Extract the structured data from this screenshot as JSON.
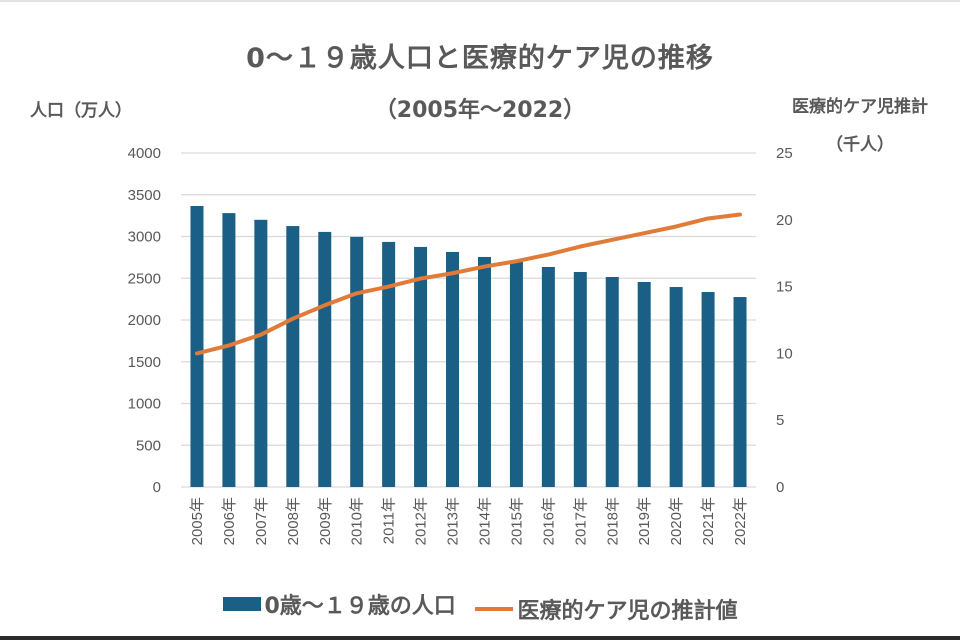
{
  "chart_data": {
    "type": "bar+line",
    "title": "0～１９歳人口と医療的ケア児の推移",
    "subtitle": "（2005年～2022）",
    "ylabel_left": "人口（万人）",
    "ylabel_right_line1": "医療的ケア児推計",
    "ylabel_right_line2": "（千人）",
    "categories": [
      "2005年",
      "2006年",
      "2007年",
      "2008年",
      "2009年",
      "2010年",
      "2011年",
      "2012年",
      "2013年",
      "2014年",
      "2015年",
      "2016年",
      "2017年",
      "2018年",
      "2019年",
      "2020年",
      "2021年",
      "2022年"
    ],
    "ylim_left": [
      0,
      4000
    ],
    "yticks_left": [
      "0",
      "500",
      "1000",
      "1500",
      "2000",
      "2500",
      "3000",
      "3500",
      "4000"
    ],
    "ylim_right": [
      0,
      25
    ],
    "yticks_right": [
      "0",
      "5",
      "10",
      "15",
      "20",
      "25"
    ],
    "grid": true,
    "legend_position": "bottom",
    "series": [
      {
        "name": "0歳～１９歳の人口",
        "type": "bar",
        "axis": "left",
        "color": "#1a5f85",
        "values": [
          3365,
          3280,
          3200,
          3125,
          3055,
          2995,
          2935,
          2875,
          2815,
          2755,
          2695,
          2635,
          2575,
          2515,
          2455,
          2395,
          2335,
          2275
        ]
      },
      {
        "name": "医療的ケア児の推計値",
        "type": "line",
        "axis": "right",
        "color": "#e07b39",
        "values": [
          10.0,
          10.6,
          11.4,
          12.6,
          13.6,
          14.5,
          15.0,
          15.6,
          16.0,
          16.5,
          16.9,
          17.4,
          18.0,
          18.5,
          19.0,
          19.5,
          20.1,
          20.4
        ]
      }
    ]
  }
}
